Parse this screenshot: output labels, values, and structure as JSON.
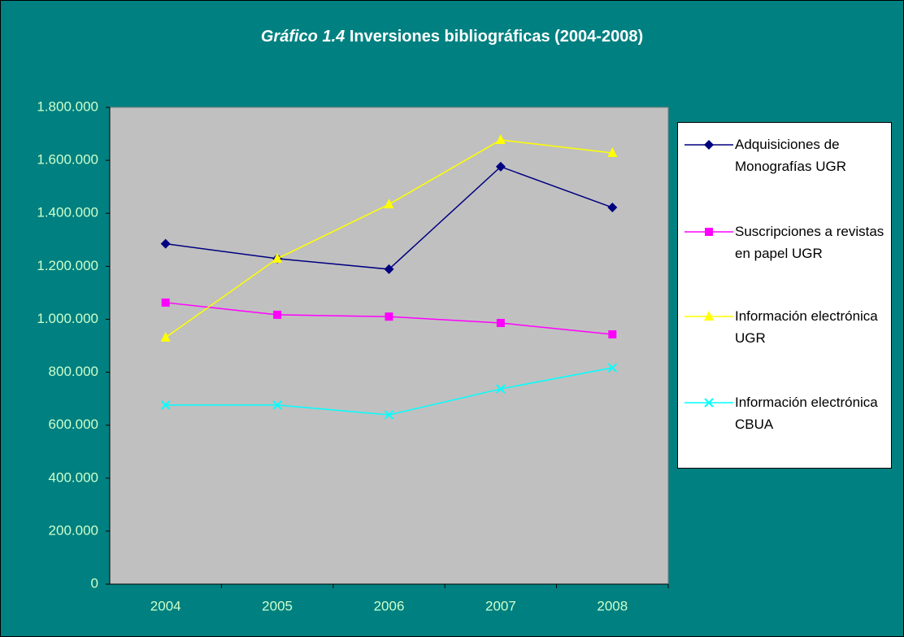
{
  "chart_data": {
    "type": "line",
    "title": [
      "Gráfico 1.4",
      "Inversiones bibliográficas (2004-2008)"
    ],
    "categories": [
      "2004",
      "2005",
      "2006",
      "2007",
      "2008"
    ],
    "series": [
      {
        "name": "Adquisiciones de Monografías UGR",
        "color": "#000080",
        "marker": "diamond",
        "values": [
          1285000,
          1229000,
          1189000,
          1576000,
          1422000
        ]
      },
      {
        "name": "Suscripciones a revistas en papel UGR",
        "color": "#ff00ff",
        "marker": "square",
        "values": [
          1063000,
          1017000,
          1010000,
          986000,
          943000
        ]
      },
      {
        "name": "Información electrónica UGR",
        "color": "#ffff00",
        "marker": "triangle",
        "values": [
          931000,
          1229000,
          1434000,
          1677000,
          1628000
        ]
      },
      {
        "name": "Información electrónica CBUA",
        "color": "#00ffff",
        "marker": "x",
        "values": [
          676000,
          676000,
          639000,
          737000,
          817000
        ]
      }
    ],
    "ylim": [
      0,
      1800000
    ],
    "yticks": [
      0,
      {
        "value": 200000,
        "label": "200.000"
      },
      {
        "value": 400000,
        "label": "400.000"
      },
      {
        "value": 600000,
        "label": "600.000"
      },
      {
        "value": 800000,
        "label": "800.000"
      },
      {
        "value": 1000000,
        "label": "1.000.000"
      },
      {
        "value": 1200000,
        "label": "1.200.000"
      },
      {
        "value": 1400000,
        "label": "1.400.000"
      },
      {
        "value": 1600000,
        "label": "1.600.000"
      },
      {
        "value": 1800000,
        "label": "1.800.000"
      }
    ],
    "grid": false,
    "legend": "right"
  }
}
